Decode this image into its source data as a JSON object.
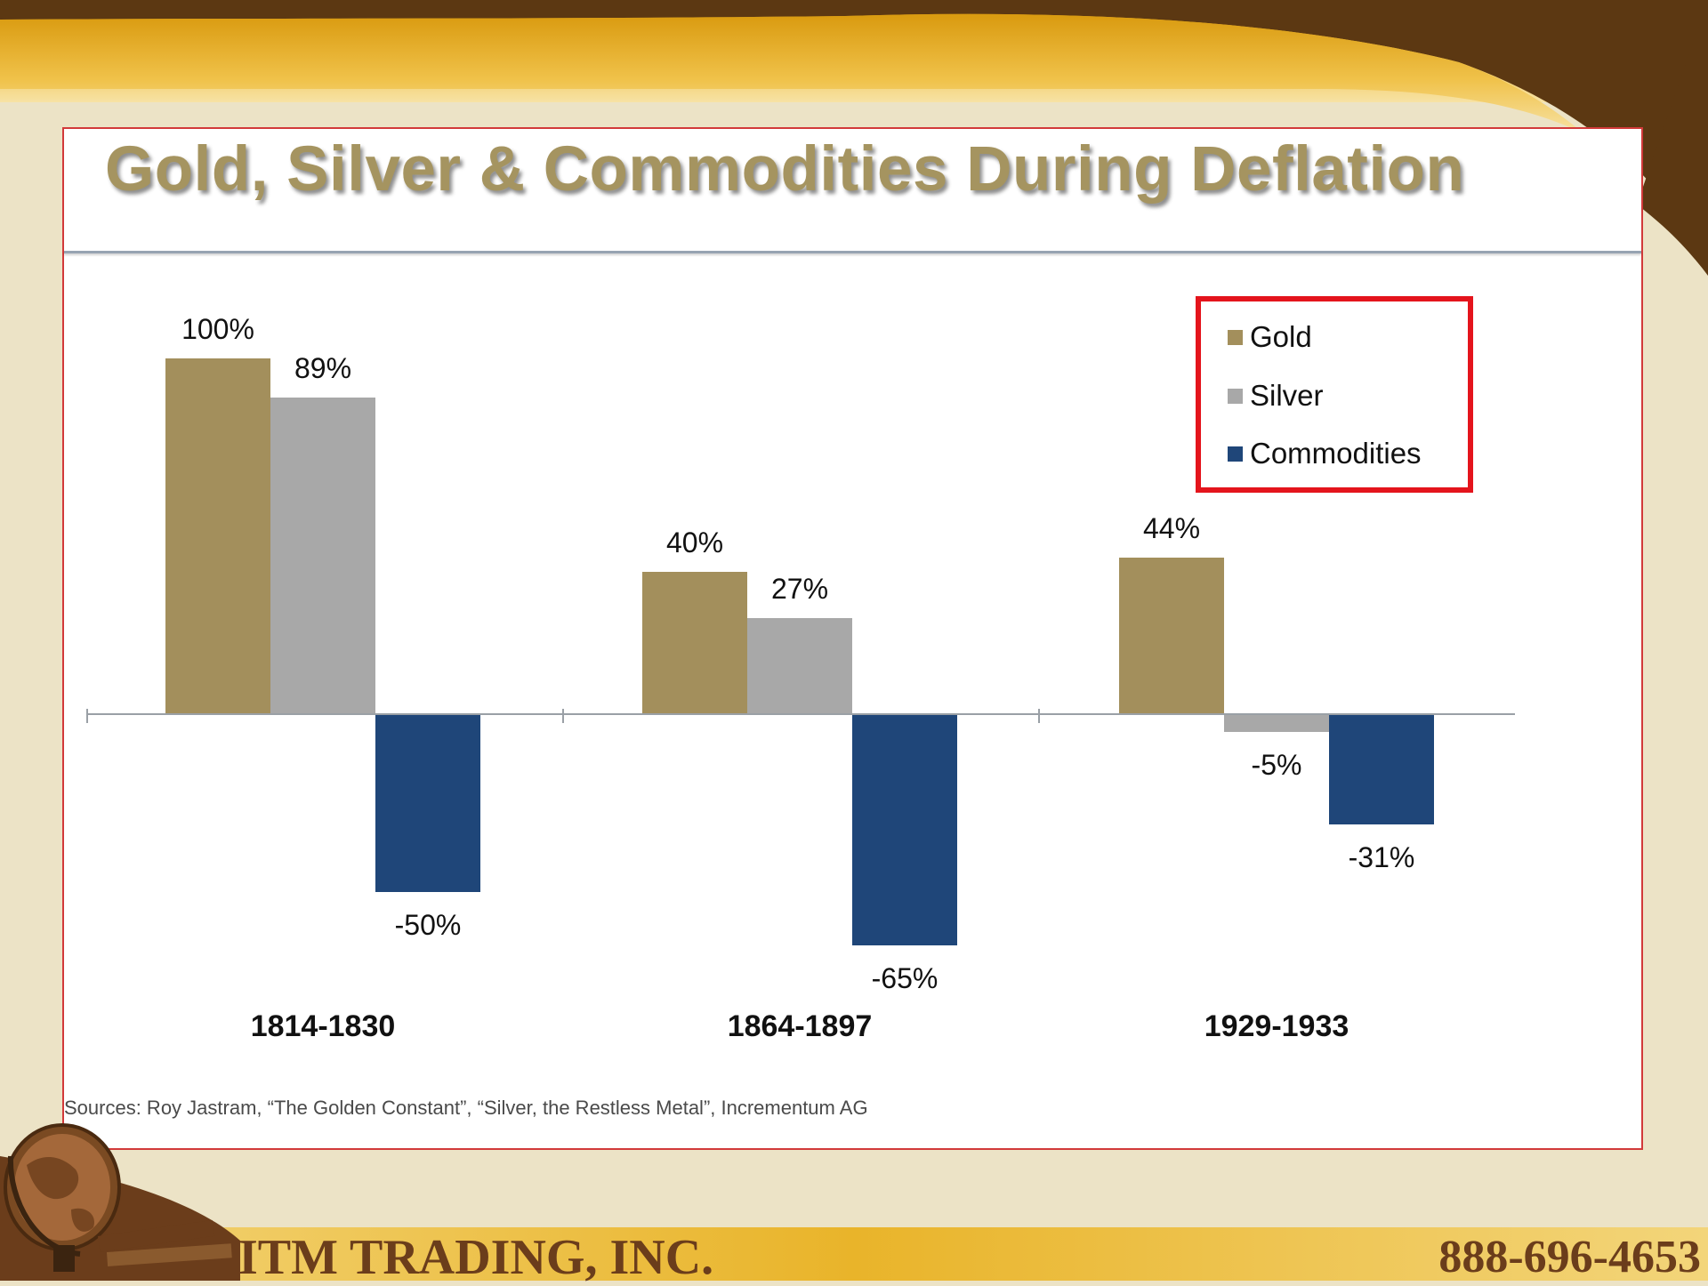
{
  "chart_data": {
    "type": "bar",
    "title": "Gold, Silver & Commodities During Deflation",
    "categories": [
      "1814-1830",
      "1864-1897",
      "1929-1933"
    ],
    "series": [
      {
        "name": "Gold",
        "values": [
          100,
          40,
          44
        ],
        "labels": [
          "100%",
          "40%",
          "44%"
        ],
        "color": "#a38f5c"
      },
      {
        "name": "Silver",
        "values": [
          89,
          27,
          -5
        ],
        "labels": [
          "89%",
          "27%",
          "-5%"
        ],
        "color": "#a8a8a8"
      },
      {
        "name": "Commodities",
        "values": [
          -50,
          -65,
          -31
        ],
        "labels": [
          "-50%",
          "-65%",
          "-31%"
        ],
        "color": "#1f4679"
      }
    ],
    "ylim": [
      -80,
      115
    ],
    "grid": false,
    "legend_position": "top-right"
  },
  "source_note": "Sources: Roy Jastram, “The Golden Constant”, “Silver, the Restless Metal”, Incrementum AG",
  "footer": {
    "company": "ITM TRADING, INC.",
    "phone": "888-696-4653"
  },
  "colors": {
    "top_band_gold": "#e3aa1d",
    "dark_brown": "#5c3812",
    "page_cream": "#ece3c6",
    "legend_border": "#e4141c"
  },
  "icons": [
    "globe-icon"
  ]
}
